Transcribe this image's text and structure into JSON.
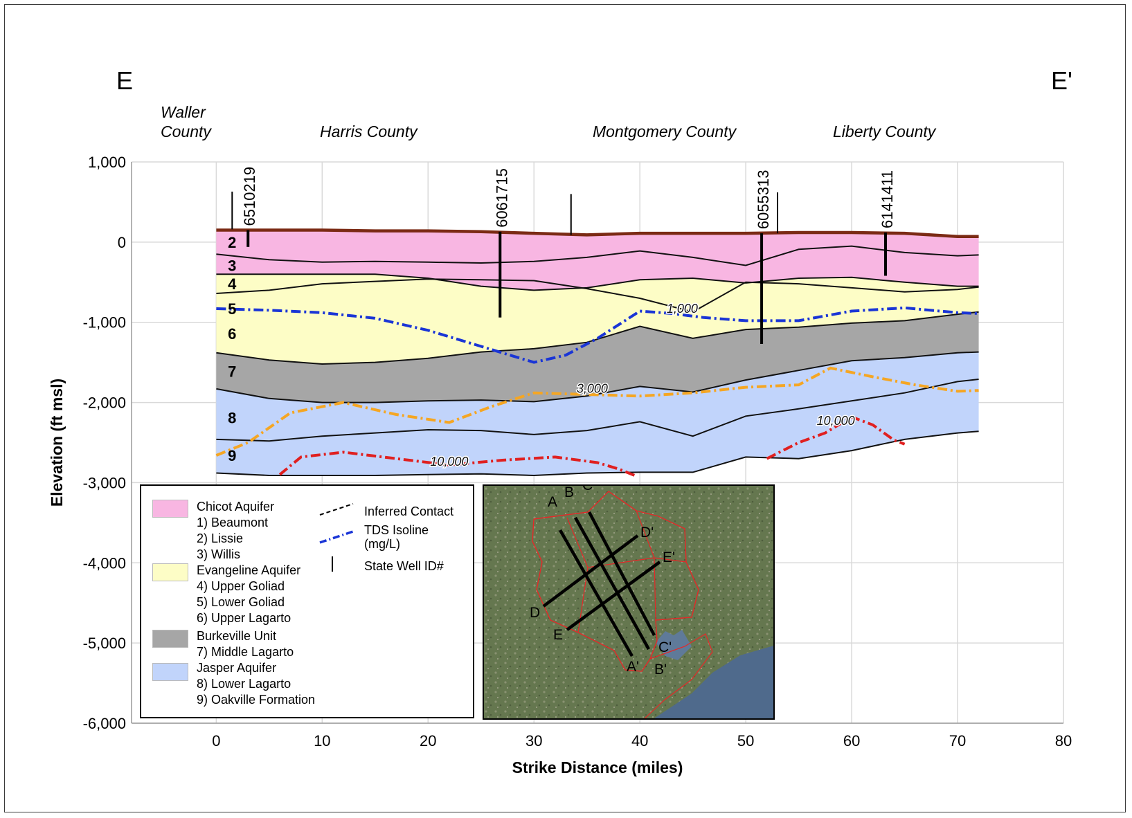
{
  "section": {
    "left_label": "E",
    "right_label": "E'"
  },
  "counties": [
    "Waller County",
    "Harris County",
    "Montgomery County",
    "Liberty County"
  ],
  "colors": {
    "chicot": "#f8b6e2",
    "evangeline": "#fdfdc6",
    "burkeville": "#a6a6a6",
    "jasper": "#c1d4fb",
    "land_surface": "#7b2a14",
    "tds_1000": "#1a35d6",
    "tds_3000": "#f5a623",
    "tds_10000": "#e02020"
  },
  "chart_data": {
    "type": "cross-section",
    "xlabel": "Strike Distance (miles)",
    "ylabel": "Elevation (ft msl)",
    "xlim": [
      -8,
      80
    ],
    "ylim": [
      -6000,
      1000
    ],
    "xticks": [
      0,
      10,
      20,
      30,
      40,
      50,
      60,
      70,
      80
    ],
    "yticks": [
      1000,
      0,
      -1000,
      -2000,
      -3000,
      -4000,
      -5000,
      -6000
    ],
    "ytick_labels": [
      "1,000",
      "0",
      "-1,000",
      "-2,000",
      "-3,000",
      "-4,000",
      "-5,000",
      "-6,000"
    ],
    "grid": true,
    "x": [
      0,
      5,
      10,
      15,
      20,
      25,
      30,
      35,
      40,
      45,
      50,
      55,
      60,
      65,
      70,
      72
    ],
    "surfaces": [
      {
        "name": "land_surface",
        "y": [
          150,
          150,
          150,
          140,
          140,
          130,
          110,
          90,
          110,
          110,
          110,
          120,
          120,
          110,
          70,
          70
        ]
      },
      {
        "name": "base_2",
        "y": [
          -150,
          -220,
          -250,
          -240,
          -250,
          -260,
          -240,
          -190,
          -110,
          -190,
          -290,
          -90,
          -50,
          -130,
          -170,
          -160
        ]
      },
      {
        "name": "base_3",
        "y": [
          -400,
          -400,
          -400,
          -400,
          -450,
          -550,
          -600,
          -570,
          -470,
          -450,
          -510,
          -450,
          -440,
          -500,
          -550,
          -550
        ]
      },
      {
        "name": "base_4",
        "y": [
          -640,
          -600,
          -520,
          -490,
          -460,
          -470,
          -480,
          -580,
          -700,
          -870,
          -500,
          -520,
          -570,
          -620,
          -590,
          -560
        ]
      },
      {
        "name": "base_6",
        "y": [
          -1380,
          -1470,
          -1520,
          -1500,
          -1450,
          -1370,
          -1330,
          -1250,
          -1050,
          -1200,
          -1090,
          -1060,
          -1010,
          -980,
          -900,
          -870
        ]
      },
      {
        "name": "base_7",
        "y": [
          -1830,
          -1950,
          -2000,
          -2000,
          -1980,
          -1970,
          -1990,
          -1920,
          -1800,
          -1870,
          -1720,
          -1600,
          -1480,
          -1440,
          -1380,
          -1370
        ]
      },
      {
        "name": "base_8",
        "y": [
          -2460,
          -2480,
          -2420,
          -2380,
          -2340,
          -2350,
          -2400,
          -2350,
          -2240,
          -2420,
          -2170,
          -2080,
          -1980,
          -1880,
          -1740,
          -1710
        ]
      },
      {
        "name": "base_9",
        "y": [
          -2880,
          -2910,
          -2910,
          -2910,
          -2900,
          -2890,
          -2910,
          -2880,
          -2870,
          -2870,
          -2680,
          -2700,
          -2600,
          -2460,
          -2380,
          -2360
        ]
      }
    ],
    "unit_labels": [
      {
        "label": "2",
        "x": 1.5,
        "y": 0
      },
      {
        "label": "3",
        "x": 1.5,
        "y": -290
      },
      {
        "label": "4",
        "x": 1.5,
        "y": -520
      },
      {
        "label": "5",
        "x": 1.5,
        "y": -830
      },
      {
        "label": "6",
        "x": 1.5,
        "y": -1140
      },
      {
        "label": "7",
        "x": 1.5,
        "y": -1610
      },
      {
        "label": "8",
        "x": 1.5,
        "y": -2190
      },
      {
        "label": "9",
        "x": 1.5,
        "y": -2660
      }
    ],
    "wells": [
      {
        "id": "6510219",
        "x": 3.0,
        "top": 150,
        "bottom": -60,
        "label_top": 1050
      },
      {
        "id": "6061715",
        "x": 26.8,
        "top": 130,
        "bottom": -940,
        "label_top": 1000
      },
      {
        "id": "6055313",
        "x": 51.5,
        "top": 110,
        "bottom": -1270,
        "label_top": 1000
      },
      {
        "id": "6141411",
        "x": 63.2,
        "top": 120,
        "bottom": -420,
        "label_top": 1000
      }
    ],
    "well_ticks": [
      {
        "x": 1.5,
        "top": 630,
        "bottom": 160
      },
      {
        "x": 33.5,
        "top": 600,
        "bottom": 90
      },
      {
        "x": 53.0,
        "top": 620,
        "bottom": 110
      }
    ],
    "tds_isolines": [
      {
        "name": "1,000",
        "x": [
          0,
          5,
          10,
          15,
          20,
          25,
          28,
          30,
          33,
          36,
          40,
          43,
          46,
          50,
          55,
          60,
          65,
          70,
          72
        ],
        "y": [
          -830,
          -850,
          -880,
          -950,
          -1100,
          -1300,
          -1420,
          -1500,
          -1410,
          -1200,
          -860,
          -890,
          -940,
          -980,
          -980,
          -860,
          -820,
          -880,
          -890
        ],
        "label_x": 44,
        "label_y": -880
      },
      {
        "name": "3,000",
        "x": [
          0,
          3,
          7,
          12,
          17,
          22,
          26,
          30,
          35,
          40,
          45,
          50,
          55,
          58,
          62,
          66,
          70,
          72
        ],
        "y": [
          -2660,
          -2500,
          -2130,
          -2000,
          -2150,
          -2250,
          -2050,
          -1880,
          -1900,
          -1920,
          -1880,
          -1810,
          -1780,
          -1570,
          -1680,
          -1780,
          -1860,
          -1850
        ],
        "label_x": 35.5,
        "label_y": -1880
      },
      {
        "name": "10,000",
        "x": [
          6,
          8,
          12,
          17,
          22,
          27,
          32,
          36,
          38,
          39.5
        ],
        "y": [
          -2900,
          -2680,
          -2620,
          -2700,
          -2780,
          -2720,
          -2680,
          -2750,
          -2830,
          -2910
        ],
        "label_x": 22,
        "label_y": -2790
      },
      {
        "name": "10,000",
        "x": [
          52,
          55,
          57.5,
          60,
          62,
          64,
          65
        ],
        "y": [
          -2700,
          -2500,
          -2380,
          -2180,
          -2280,
          -2470,
          -2520
        ],
        "label_x": 58.5,
        "label_y": -2280
      }
    ]
  },
  "legend": {
    "units": [
      {
        "aquifer": "Chicot Aquifer",
        "color_key": "chicot",
        "members": [
          "1) Beaumont",
          "2) Lissie",
          "3) Willis"
        ]
      },
      {
        "aquifer": "Evangeline Aquifer",
        "color_key": "evangeline",
        "members": [
          "4) Upper Goliad",
          "5) Lower Goliad",
          "6) Upper Lagarto"
        ]
      },
      {
        "aquifer": "Burkeville Unit",
        "color_key": "burkeville",
        "members": [
          "7) Middle Lagarto"
        ]
      },
      {
        "aquifer": "Jasper Aquifer",
        "color_key": "jasper",
        "members": [
          "8) Lower Lagarto",
          "9) Oakville Formation"
        ]
      }
    ],
    "symbols": [
      {
        "label": "Inferred Contact"
      },
      {
        "label": "TDS Isoline\n(mg/L)"
      },
      {
        "label": "State Well ID#"
      }
    ]
  },
  "inset_map": {
    "sections": [
      {
        "start": "A",
        "end": "A'"
      },
      {
        "start": "B",
        "end": "B'"
      },
      {
        "start": "C",
        "end": "C'"
      },
      {
        "start": "D",
        "end": "D'"
      },
      {
        "start": "E",
        "end": "E'"
      }
    ]
  }
}
